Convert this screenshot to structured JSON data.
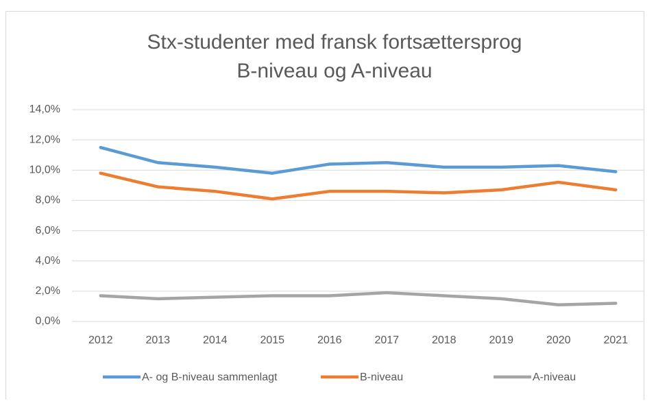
{
  "chart_data": {
    "type": "line",
    "title": "Stx-studenter med fransk fortsættersprog",
    "subtitle": "B-niveau og A-niveau",
    "categories": [
      "2012",
      "2013",
      "2014",
      "2015",
      "2016",
      "2017",
      "2018",
      "2019",
      "2020",
      "2021"
    ],
    "series": [
      {
        "name": "A- og B-niveau sammenlagt",
        "color": "#5b9bd5",
        "values": [
          11.5,
          10.5,
          10.2,
          9.8,
          10.4,
          10.5,
          10.2,
          10.2,
          10.3,
          9.9
        ]
      },
      {
        "name": "B-niveau",
        "color": "#ed7d31",
        "values": [
          9.8,
          8.9,
          8.6,
          8.1,
          8.6,
          8.6,
          8.5,
          8.7,
          9.2,
          8.7
        ]
      },
      {
        "name": "A-niveau",
        "color": "#a5a5a5",
        "values": [
          1.7,
          1.5,
          1.6,
          1.7,
          1.7,
          1.9,
          1.7,
          1.5,
          1.1,
          1.2
        ]
      }
    ],
    "ylim": [
      0,
      14
    ],
    "yticks": [
      {
        "value": 0,
        "label": "0,0%"
      },
      {
        "value": 2,
        "label": "2,0%"
      },
      {
        "value": 4,
        "label": "4,0%"
      },
      {
        "value": 6,
        "label": "6,0%"
      },
      {
        "value": 8,
        "label": "8,0%"
      },
      {
        "value": 10,
        "label": "10,0%"
      },
      {
        "value": 12,
        "label": "12,0%"
      },
      {
        "value": 14,
        "label": "14,0%"
      }
    ],
    "grid": true,
    "legend": "bottom"
  }
}
